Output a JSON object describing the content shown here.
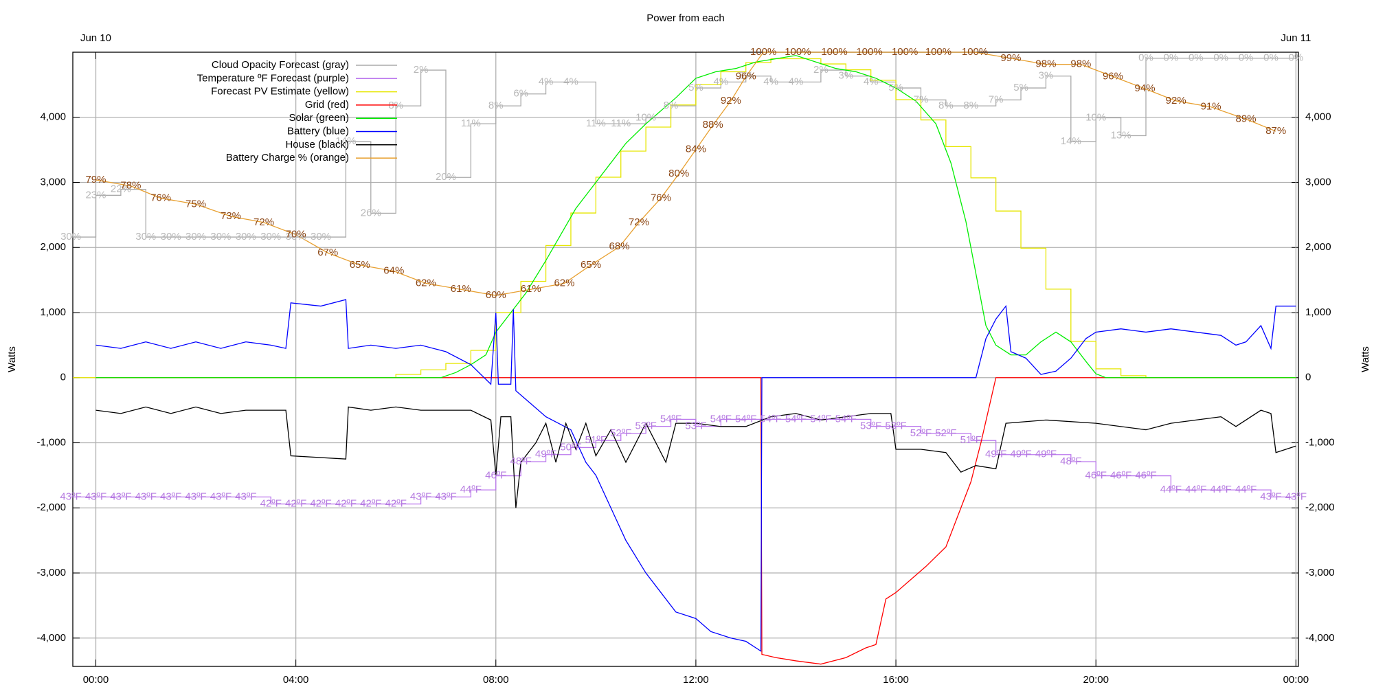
{
  "chart_data": {
    "type": "line",
    "title": "Power from each",
    "ylabel": "Watts",
    "y2label": "Watts",
    "xlim": [
      -0.46,
      24.05
    ],
    "ylim": [
      -4435,
      5000
    ],
    "y2lim": [
      -4435,
      5000
    ],
    "grid": true,
    "legend": "top-left",
    "xticks": [
      {
        "value": 0,
        "label": "00:00"
      },
      {
        "value": 4,
        "label": "04:00"
      },
      {
        "value": 8,
        "label": "08:00"
      },
      {
        "value": 12,
        "label": "12:00"
      },
      {
        "value": 16,
        "label": "16:00"
      },
      {
        "value": 20,
        "label": "20:00"
      },
      {
        "value": 24,
        "label": "00:00"
      }
    ],
    "x2ticks": [
      {
        "value": 0,
        "label": "Jun 10"
      },
      {
        "value": 24,
        "label": "Jun 11"
      }
    ],
    "yticks": [
      {
        "value": -4000,
        "label": "-4,000"
      },
      {
        "value": -3000,
        "label": "-3,000"
      },
      {
        "value": -2000,
        "label": "-2,000"
      },
      {
        "value": -1000,
        "label": "-1,000"
      },
      0,
      {
        "value": 1000,
        "label": "1,000"
      },
      {
        "value": 2000,
        "label": "2,000"
      },
      {
        "value": 3000,
        "label": "3,000"
      },
      {
        "value": 4000,
        "label": "4,000"
      }
    ],
    "y2ticks": [
      {
        "value": -4000,
        "label": "-4,000"
      },
      {
        "value": -3000,
        "label": "-3,000"
      },
      {
        "value": -2000,
        "label": "-2,000"
      },
      {
        "value": -1000,
        "label": "-1,000"
      },
      0,
      {
        "value": 1000,
        "label": "1,000"
      },
      {
        "value": 2000,
        "label": "2,000"
      },
      {
        "value": 3000,
        "label": "3,000"
      },
      {
        "value": 4000,
        "label": "4,000"
      }
    ],
    "series": [
      {
        "name": "Cloud Opacity Forecast (gray)",
        "color": "#aaaaaa",
        "label_color": "#b8b8b8",
        "style": "step",
        "ylim": [
          102,
          -1
        ],
        "x": [
          -0.5,
          0,
          0.5,
          1,
          1.5,
          2,
          2.5,
          3,
          3.5,
          4,
          4.5,
          5,
          5.5,
          6,
          6.5,
          7,
          7.5,
          8,
          8.5,
          9,
          9.5,
          10,
          10.5,
          11,
          11.5,
          12,
          12.5,
          13,
          13.5,
          14,
          14.5,
          15,
          15.5,
          16,
          16.5,
          17,
          17.5,
          18,
          18.5,
          19,
          19.5,
          20,
          20.5,
          21,
          21.5,
          22,
          22.5,
          23,
          23.5,
          24
        ],
        "values": [
          30,
          23,
          22,
          30,
          30,
          30,
          30,
          30,
          30,
          30,
          30,
          14,
          26,
          8,
          2,
          20,
          11,
          8,
          6,
          4,
          4,
          11,
          11,
          10,
          8,
          5,
          4,
          3,
          4,
          4,
          2,
          3,
          4,
          5,
          7,
          8,
          8,
          7,
          5,
          3,
          14,
          10,
          13,
          0,
          0,
          0,
          0,
          0,
          0,
          0
        ],
        "value_labels": [
          "30%",
          "23%",
          "22%",
          "30%",
          "30%",
          "30%",
          "30%",
          "30%",
          "30%",
          "30%",
          "30%",
          "14%",
          "26%",
          "8%",
          "2%",
          "20%",
          "11%",
          "8%",
          "6%",
          "4%",
          "4%",
          "11%",
          "11%",
          "10%",
          "8%",
          "5%",
          "4%",
          "3%",
          "4%",
          "4%",
          "2%",
          "3%",
          "4%",
          "5%",
          "7%",
          "8%",
          "8%",
          "7%",
          "5%",
          "3%",
          "14%",
          "10%",
          "13%",
          "0%",
          "0%",
          "0%",
          "0%",
          "0%",
          "0%",
          "0%"
        ]
      },
      {
        "name": "Temperature ºF Forecast (purple)",
        "color": "#bb77ee",
        "label_color": "#b57ae0",
        "style": "step",
        "ylim": [
          19,
          106
        ],
        "x": [
          -0.5,
          0,
          0.5,
          1,
          1.5,
          2,
          2.5,
          3,
          3.5,
          4,
          4.5,
          5,
          5.5,
          6,
          6.5,
          7,
          7.5,
          8,
          8.5,
          9,
          9.5,
          10,
          10.5,
          11,
          11.5,
          12,
          12.5,
          13,
          13.5,
          14,
          14.5,
          15,
          15.5,
          16,
          16.5,
          17,
          17.5,
          18,
          18.5,
          19,
          19.5,
          20,
          20.5,
          21,
          21.5,
          22,
          22.5,
          23,
          23.5,
          24
        ],
        "values": [
          43,
          43,
          43,
          43,
          43,
          43,
          43,
          43,
          42,
          42,
          42,
          42,
          42,
          42,
          43,
          43,
          44,
          46,
          48,
          49,
          50,
          51,
          52,
          53,
          54,
          53,
          54,
          54,
          54,
          54,
          54,
          54,
          53,
          53,
          52,
          52,
          51,
          49,
          49,
          49,
          48,
          46,
          46,
          46,
          44,
          44,
          44,
          44,
          43,
          43
        ],
        "value_labels": [
          "43ºF",
          "43ºF",
          "43ºF",
          "43ºF",
          "43ºF",
          "43ºF",
          "43ºF",
          "43ºF",
          "42ºF",
          "42ºF",
          "42ºF",
          "42ºF",
          "42ºF",
          "42ºF",
          "43ºF",
          "43ºF",
          "44ºF",
          "46ºF",
          "48ºF",
          "49ºF",
          "50ºF",
          "51ºF",
          "52ºF",
          "53ºF",
          "54ºF",
          "53ºF",
          "54ºF",
          "54ºF",
          "54ºF",
          "54ºF",
          "54ºF",
          "54ºF",
          "53ºF",
          "53ºF",
          "52ºF",
          "52ºF",
          "51ºF",
          "49ºF",
          "49ºF",
          "49ºF",
          "48ºF",
          "46ºF",
          "46ºF",
          "46ºF",
          "44ºF",
          "44ºF",
          "44ºF",
          "44ºF",
          "43ºF",
          "43ºF"
        ]
      },
      {
        "name": "Forecast PV Estimate (yellow)",
        "color": "#e6e600",
        "style": "step",
        "x": [
          -0.46,
          6,
          6.5,
          7,
          7.5,
          8,
          8.5,
          9,
          9.5,
          10,
          10.5,
          11,
          11.5,
          12,
          12.5,
          13,
          13.5,
          14,
          14.5,
          15,
          15.5,
          16,
          16.5,
          17,
          17.5,
          18,
          18.5,
          19,
          19.5,
          20,
          20.5,
          21,
          24
        ],
        "values": [
          0,
          50,
          120,
          220,
          420,
          1000,
          1480,
          2030,
          2530,
          3080,
          3480,
          3850,
          4190,
          4500,
          4700,
          4840,
          4900,
          4900,
          4820,
          4730,
          4570,
          4270,
          3960,
          3550,
          3070,
          2560,
          1990,
          1360,
          560,
          136,
          30,
          0,
          0
        ]
      },
      {
        "name": "Grid (red)",
        "color": "#ff0000",
        "x": [
          0,
          13.3,
          13.32,
          13.6,
          14,
          14.5,
          15,
          15.4,
          15.6,
          15.8,
          16,
          16.3,
          16.6,
          17,
          17.3,
          17.5,
          17.7,
          17.85,
          18,
          24
        ],
        "values": [
          0,
          0,
          -4250,
          -4300,
          -4350,
          -4400,
          -4300,
          -4150,
          -4100,
          -3400,
          -3300,
          -3100,
          -2900,
          -2600,
          -2000,
          -1600,
          -1000,
          -500,
          0,
          0
        ]
      },
      {
        "name": "Solar (green)",
        "color": "#00ee00",
        "x": [
          0,
          6.9,
          7.2,
          7.5,
          7.8,
          8,
          8.3,
          8.6,
          9,
          9.3,
          9.6,
          10,
          10.3,
          10.6,
          11,
          11.3,
          11.6,
          12,
          12.4,
          12.8,
          13.2,
          13.6,
          14,
          14.4,
          14.8,
          15.2,
          15.6,
          16,
          16.4,
          16.8,
          17.1,
          17.4,
          17.6,
          17.8,
          18,
          18.3,
          18.6,
          18.9,
          19.2,
          19.5,
          19.8,
          20,
          20.2,
          24
        ],
        "values": [
          0,
          0,
          80,
          200,
          350,
          700,
          1000,
          1300,
          1800,
          2200,
          2600,
          3000,
          3300,
          3600,
          3900,
          4100,
          4300,
          4600,
          4700,
          4750,
          4850,
          4900,
          4950,
          4850,
          4750,
          4700,
          4600,
          4450,
          4250,
          3900,
          3300,
          2400,
          1600,
          800,
          500,
          350,
          350,
          550,
          700,
          550,
          250,
          60,
          0,
          0
        ]
      },
      {
        "name": "Battery (blue)",
        "color": "#0000ff",
        "x": [
          0,
          0.5,
          1,
          1.5,
          2,
          2.5,
          3,
          3.5,
          3.8,
          3.9,
          4.5,
          5,
          5.05,
          5.5,
          6,
          6.5,
          7,
          7.5,
          7.9,
          8,
          8.05,
          8.3,
          8.35,
          8.4,
          8.7,
          9,
          9.5,
          9.8,
          10,
          10.3,
          10.6,
          11,
          11.3,
          11.6,
          12,
          12.3,
          12.7,
          13,
          13.3,
          13.32,
          17.6,
          17.8,
          18,
          18.2,
          18.3,
          18.6,
          18.9,
          19.2,
          19.5,
          19.8,
          20,
          20.5,
          21,
          21.5,
          22,
          22.5,
          22.8,
          23,
          23.3,
          23.5,
          23.6,
          24
        ],
        "values": [
          500,
          450,
          550,
          450,
          550,
          450,
          550,
          500,
          450,
          1150,
          1100,
          1200,
          450,
          500,
          450,
          500,
          400,
          200,
          -100,
          1000,
          -100,
          -100,
          1050,
          -200,
          -400,
          -600,
          -800,
          -1300,
          -1500,
          -2000,
          -2500,
          -3000,
          -3300,
          -3600,
          -3700,
          -3900,
          -4000,
          -4050,
          -4200,
          0,
          0,
          600,
          900,
          1100,
          400,
          300,
          50,
          100,
          300,
          600,
          700,
          750,
          700,
          750,
          700,
          650,
          500,
          550,
          800,
          450,
          1100,
          1100
        ]
      },
      {
        "name": "House (black)",
        "color": "#000000",
        "x": [
          0,
          0.5,
          1,
          1.5,
          2,
          2.5,
          3,
          3.8,
          3.9,
          5,
          5.05,
          5.5,
          6,
          6.5,
          7,
          7.5,
          7.9,
          8,
          8.1,
          8.3,
          8.4,
          8.5,
          8.8,
          9,
          9.2,
          9.4,
          9.6,
          9.8,
          10,
          10.3,
          10.6,
          11,
          11.4,
          11.6,
          12,
          12.5,
          13,
          13.5,
          14,
          14.5,
          15,
          15.5,
          15.9,
          16,
          16.5,
          17,
          17.3,
          17.6,
          18,
          18.2,
          19,
          20,
          21,
          21.5,
          22,
          22.5,
          22.8,
          23.3,
          23.5,
          23.6,
          24
        ],
        "values": [
          -500,
          -550,
          -450,
          -550,
          -450,
          -550,
          -500,
          -500,
          -1200,
          -1250,
          -450,
          -500,
          -450,
          -500,
          -500,
          -500,
          -650,
          -1500,
          -600,
          -600,
          -2000,
          -1300,
          -1000,
          -700,
          -1300,
          -700,
          -1100,
          -700,
          -1200,
          -800,
          -1300,
          -700,
          -1300,
          -700,
          -700,
          -750,
          -750,
          -600,
          -550,
          -650,
          -600,
          -550,
          -550,
          -1100,
          -1100,
          -1150,
          -1450,
          -1350,
          -1400,
          -700,
          -650,
          -700,
          -800,
          -700,
          -650,
          -600,
          -750,
          -500,
          -550,
          -1150,
          -1050
        ]
      },
      {
        "name": "Battery Charge % (orange)",
        "color": "#e8a030",
        "label_color": "#8b4513",
        "ylim": [
          -1,
          100
        ],
        "x": [
          0,
          0.7,
          1.3,
          2,
          2.7,
          3.36,
          4,
          4.64,
          5.28,
          5.96,
          6.6,
          7.3,
          8,
          8.7,
          9.37,
          9.9,
          10.47,
          10.86,
          11.3,
          11.66,
          12,
          12.34,
          12.7,
          13,
          13.35,
          14.04,
          14.77,
          15.47,
          16.18,
          16.85,
          17.58,
          18.3,
          19,
          19.7,
          20.34,
          20.98,
          21.6,
          22.3,
          23,
          23.6
        ],
        "values": [
          79,
          78,
          76,
          75,
          73,
          72,
          70,
          67,
          65,
          64,
          62,
          61,
          60,
          61,
          62,
          65,
          68,
          72,
          76,
          80,
          84,
          88,
          92,
          96,
          100,
          100,
          100,
          100,
          100,
          100,
          100,
          99,
          98,
          98,
          96,
          94,
          92,
          91,
          89,
          87
        ],
        "value_labels": [
          "79%",
          "78%",
          "76%",
          "75%",
          "73%",
          "72%",
          "70%",
          "67%",
          "65%",
          "64%",
          "62%",
          "61%",
          "60%",
          "61%",
          "62%",
          "65%",
          "68%",
          "72%",
          "76%",
          "80%",
          "84%",
          "88%",
          "92%",
          "96%",
          "100%",
          "100%",
          "100%",
          "100%",
          "100%",
          "100%",
          "100%",
          "99%",
          "98%",
          "98%",
          "96%",
          "94%",
          "92%",
          "91%",
          "89%",
          "87%"
        ]
      }
    ]
  }
}
